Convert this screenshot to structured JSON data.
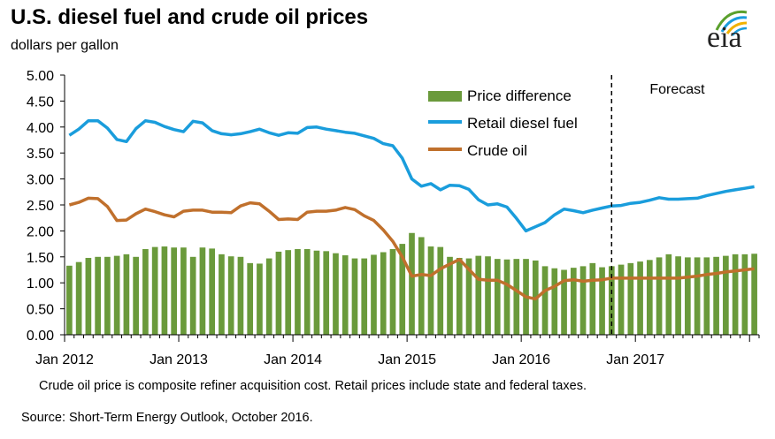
{
  "title": "U.S. diesel fuel and crude oil prices",
  "subtitle": "dollars per gallon",
  "logo_text": "eia",
  "note": "Crude oil price is composite refiner acquisition cost.  Retail prices include state and federal taxes.",
  "source": "Source: Short-Term Energy Outlook, October 2016.",
  "colors": {
    "bars": "#6a9a3b",
    "diesel": "#1a9ddc",
    "crude": "#c0702c",
    "forecast_line": "#000000"
  },
  "chart_data": {
    "type": "bar+line",
    "title": "U.S. diesel fuel and crude oil prices",
    "ylabel": "dollars per gallon",
    "ylim": [
      0,
      5
    ],
    "yticks": [
      "0.00",
      "0.50",
      "1.00",
      "1.50",
      "2.00",
      "2.50",
      "3.00",
      "3.50",
      "4.00",
      "4.50",
      "5.00"
    ],
    "x_tick_labels": [
      "Jan 2012",
      "Jan 2013",
      "Jan 2014",
      "Jan 2015",
      "Jan 2016",
      "Jan 2017"
    ],
    "x_start": "Jan 2012",
    "x_end": "Dec 2017",
    "forecast_label": "Forecast",
    "forecast_start_month_index": 57.5,
    "legend": [
      "Price difference",
      "Retail diesel fuel",
      "Crude oil"
    ],
    "series": [
      {
        "name": "Price difference",
        "type": "bar",
        "values": [
          1.33,
          1.4,
          1.48,
          1.5,
          1.5,
          1.52,
          1.55,
          1.5,
          1.65,
          1.69,
          1.7,
          1.68,
          1.68,
          1.5,
          1.68,
          1.66,
          1.55,
          1.51,
          1.5,
          1.38,
          1.37,
          1.47,
          1.6,
          1.63,
          1.65,
          1.65,
          1.62,
          1.61,
          1.57,
          1.53,
          1.47,
          1.47,
          1.54,
          1.59,
          1.65,
          1.75,
          1.96,
          1.88,
          1.7,
          1.69,
          1.5,
          1.48,
          1.47,
          1.52,
          1.51,
          1.46,
          1.45,
          1.46,
          1.46,
          1.43,
          1.32,
          1.28,
          1.25,
          1.29,
          1.32,
          1.38,
          1.3,
          1.32,
          1.35,
          1.38,
          1.41,
          1.44,
          1.49,
          1.55,
          1.51,
          1.49,
          1.49,
          1.49,
          1.5,
          1.52,
          1.55,
          1.55,
          1.56
        ]
      },
      {
        "name": "Retail diesel fuel",
        "type": "line",
        "values": [
          3.84,
          3.96,
          4.12,
          4.12,
          3.98,
          3.76,
          3.72,
          3.97,
          4.12,
          4.09,
          4.01,
          3.95,
          3.91,
          4.11,
          4.08,
          3.93,
          3.87,
          3.85,
          3.87,
          3.91,
          3.96,
          3.89,
          3.84,
          3.89,
          3.88,
          3.99,
          4.0,
          3.96,
          3.93,
          3.9,
          3.88,
          3.83,
          3.78,
          3.68,
          3.64,
          3.4,
          3.0,
          2.86,
          2.91,
          2.79,
          2.88,
          2.87,
          2.8,
          2.6,
          2.5,
          2.52,
          2.46,
          2.24,
          2.0,
          2.08,
          2.16,
          2.31,
          2.42,
          2.39,
          2.35,
          2.4,
          2.44,
          2.48,
          2.49,
          2.53,
          2.55,
          2.59,
          2.64,
          2.61,
          2.61,
          2.62,
          2.63,
          2.68,
          2.72,
          2.76,
          2.79,
          2.82,
          2.85
        ]
      },
      {
        "name": "Crude oil",
        "type": "line",
        "values": [
          2.5,
          2.55,
          2.63,
          2.62,
          2.47,
          2.2,
          2.21,
          2.33,
          2.42,
          2.37,
          2.31,
          2.27,
          2.38,
          2.4,
          2.4,
          2.36,
          2.36,
          2.35,
          2.48,
          2.54,
          2.52,
          2.38,
          2.22,
          2.23,
          2.22,
          2.36,
          2.38,
          2.38,
          2.4,
          2.45,
          2.41,
          2.29,
          2.2,
          2.02,
          1.8,
          1.5,
          1.13,
          1.16,
          1.14,
          1.27,
          1.36,
          1.45,
          1.26,
          1.07,
          1.05,
          1.05,
          0.97,
          0.85,
          0.73,
          0.69,
          0.85,
          0.93,
          1.04,
          1.06,
          1.03,
          1.05,
          1.06,
          1.09,
          1.09,
          1.09,
          1.09,
          1.09,
          1.09,
          1.09,
          1.09,
          1.11,
          1.13,
          1.16,
          1.18,
          1.21,
          1.23,
          1.25,
          1.27
        ]
      }
    ]
  }
}
